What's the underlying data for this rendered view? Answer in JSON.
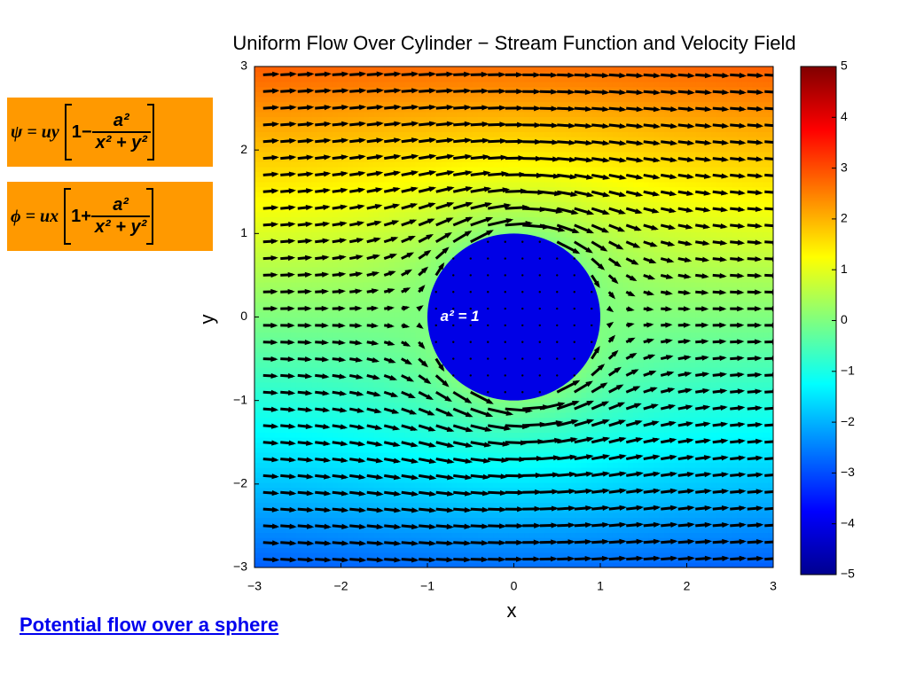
{
  "chart_data": {
    "type": "stream-quiver",
    "title": "Uniform Flow Over Cylinder − Stream Function and Velocity Field",
    "xlabel": "x",
    "ylabel": "y",
    "xlim": [
      -3,
      3
    ],
    "ylim": [
      -3,
      3
    ],
    "xticks": [
      {
        "value": -3,
        "label": "−3"
      },
      {
        "value": -2,
        "label": "−2"
      },
      {
        "value": -1,
        "label": "−1"
      },
      0,
      1,
      2,
      3
    ],
    "yticks": [
      {
        "value": -3,
        "label": "−3"
      },
      {
        "value": -2,
        "label": "−2"
      },
      {
        "value": -1,
        "label": "−1"
      },
      0,
      1,
      2,
      3
    ],
    "clim": [
      -5,
      5
    ],
    "cticks": [
      {
        "value": -5,
        "label": "−5"
      },
      {
        "value": -4,
        "label": "−4"
      },
      {
        "value": -3,
        "label": "−3"
      },
      {
        "value": -2,
        "label": "−2"
      },
      {
        "value": -1,
        "label": "−1"
      },
      0,
      1,
      2,
      3,
      4,
      5
    ],
    "colormap": "jet",
    "a_squared": 1,
    "annotation": "a² = 1"
  },
  "equations": [
    {
      "lhs": "ψ = uy",
      "lead": "1−",
      "numerator": "a²",
      "denominator": "x² + y²"
    },
    {
      "lhs": "ϕ = ux",
      "lead": "1+",
      "numerator": "a²",
      "denominator": "x² + y²"
    }
  ],
  "link": "Potential flow over a sphere"
}
